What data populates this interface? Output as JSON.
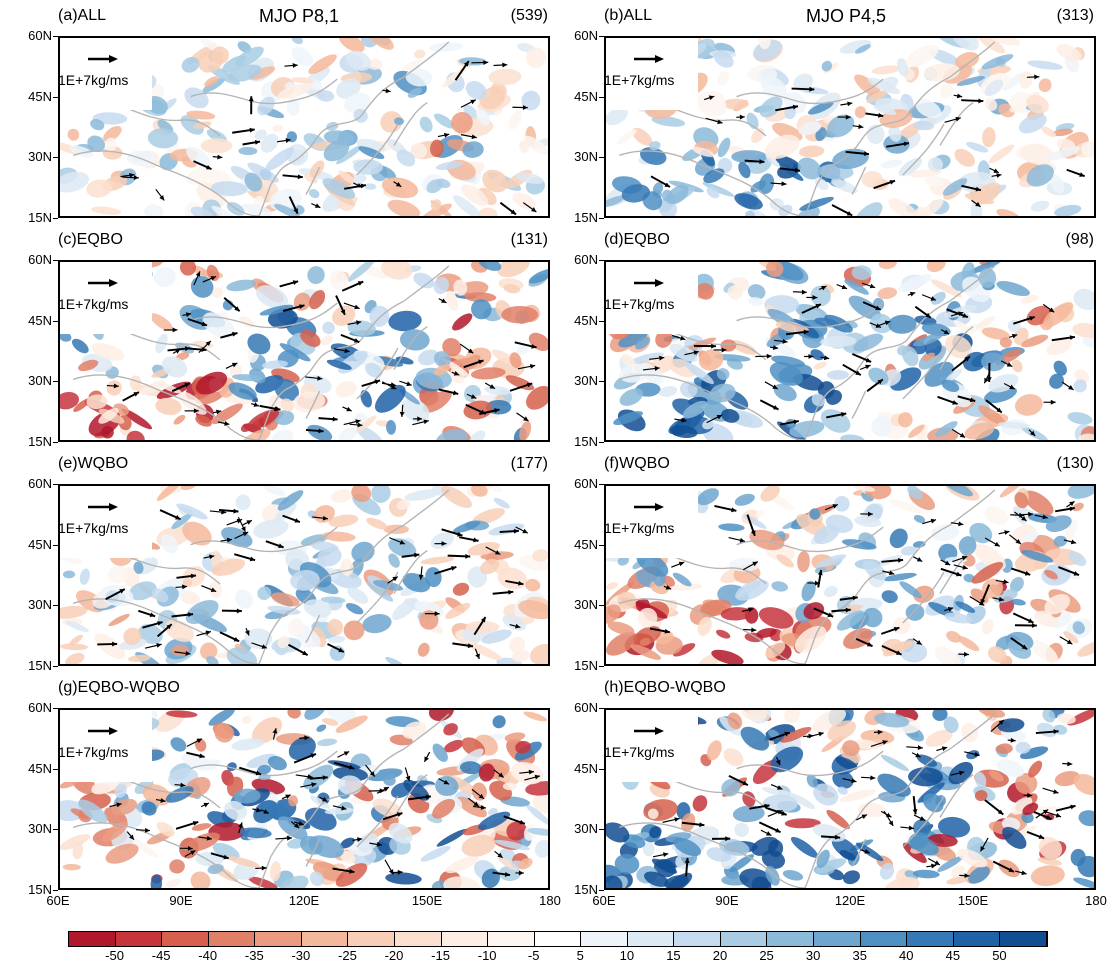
{
  "figure": {
    "titles": {
      "left": "MJO P8,1",
      "right": "MJO P4,5"
    },
    "panels": [
      {
        "id": "a",
        "label": "(a)ALL",
        "count": "(539)",
        "seed": 11,
        "amp": 0.55,
        "bias": "mixed"
      },
      {
        "id": "b",
        "label": "(b)ALL",
        "count": "(313)",
        "seed": 23,
        "amp": 0.55,
        "bias": "blue_sw"
      },
      {
        "id": "c",
        "label": "(c)EQBO",
        "count": "(131)",
        "seed": 37,
        "amp": 0.8,
        "bias": "red_sw"
      },
      {
        "id": "d",
        "label": "(d)EQBO",
        "count": "(98)",
        "seed": 41,
        "amp": 0.8,
        "bias": "blue_sw"
      },
      {
        "id": "e",
        "label": "(e)WQBO",
        "count": "(177)",
        "seed": 53,
        "amp": 0.6,
        "bias": "mixed"
      },
      {
        "id": "f",
        "label": "(f)WQBO",
        "count": "(130)",
        "seed": 67,
        "amp": 0.7,
        "bias": "red_sw"
      },
      {
        "id": "g",
        "label": "(g)EQBO-WQBO",
        "count": "",
        "seed": 79,
        "amp": 0.95,
        "bias": "mixed"
      },
      {
        "id": "h",
        "label": "(h)EQBO-WQBO",
        "count": "",
        "seed": 83,
        "amp": 0.95,
        "bias": "blue_sw"
      }
    ],
    "reference_vector": "1E+7kg/ms",
    "lat_ticks": [
      "60N",
      "45N",
      "30N",
      "15N"
    ],
    "lon_ticks": [
      "60E",
      "90E",
      "120E",
      "150E",
      "180"
    ],
    "colorbar": {
      "labels": [
        "-50",
        "-45",
        "-40",
        "-35",
        "-30",
        "-25",
        "-20",
        "-15",
        "-10",
        "-5",
        "5",
        "10",
        "15",
        "20",
        "25",
        "30",
        "35",
        "40",
        "45",
        "50"
      ],
      "colors": [
        "#b2182b",
        "#c6343c",
        "#d6604d",
        "#e08068",
        "#eb9c80",
        "#f4b99b",
        "#f8cfb6",
        "#fbe0cf",
        "#fdefe5",
        "#fdf6f1",
        "#ffffff",
        "#eef4fa",
        "#dde9f3",
        "#c6dbef",
        "#a9cce4",
        "#8cbad9",
        "#6ea6cf",
        "#4f90c3",
        "#3579b5",
        "#1f62a6",
        "#124e92"
      ]
    }
  }
}
